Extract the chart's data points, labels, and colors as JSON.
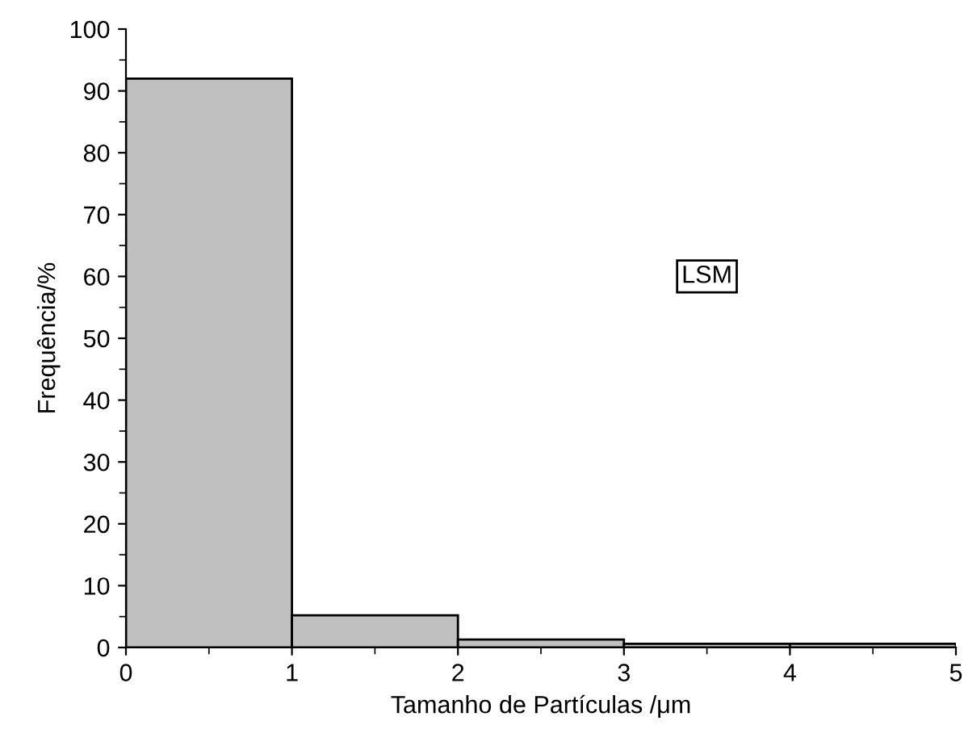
{
  "chart_data": {
    "type": "histogram",
    "xlabel": "Tamanho de Partículas /μm",
    "ylabel": "Frequência/%",
    "bins": [
      0,
      1,
      2,
      3,
      4,
      5
    ],
    "values": [
      92,
      5.2,
      1.3,
      0.6,
      0.6
    ],
    "color": "#c0c0c0",
    "xlim": [
      0,
      5
    ],
    "xticks": [
      0,
      1,
      2,
      3,
      4,
      5
    ],
    "ylim": [
      0,
      100
    ],
    "yticks": [
      0,
      10,
      20,
      30,
      40,
      50,
      60,
      70,
      80,
      90,
      100
    ],
    "annotations": [
      {
        "text": "LSM",
        "x": 3.5,
        "y": 60
      }
    ],
    "grid": false
  }
}
